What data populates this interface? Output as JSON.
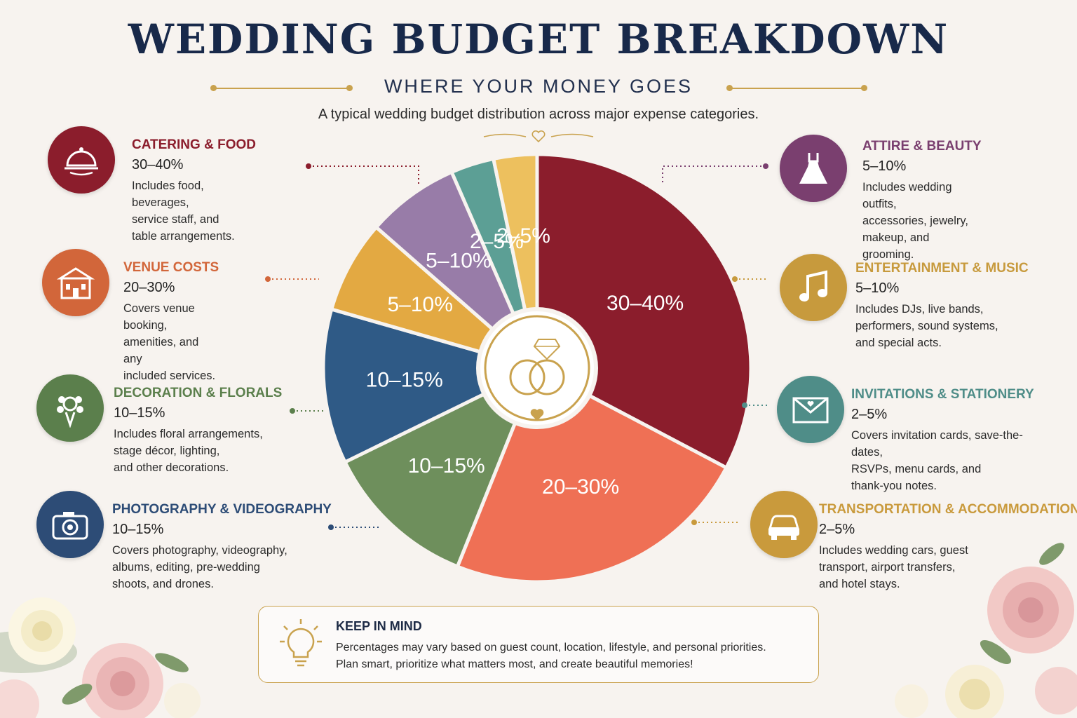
{
  "header": {
    "title": "WEDDING BUDGET BREAKDOWN",
    "subtitle": "WHERE YOUR MONEY GOES",
    "description": "A typical wedding budget distribution across major expense categories."
  },
  "colors": {
    "accent_gold": "#c9a24e",
    "title_navy": "#18294a",
    "catering": "#8b1d2c",
    "venue": "#d2663a",
    "decoration": "#5b7f4c",
    "photography": "#2d4c76",
    "attire": "#7a3f6f",
    "entertainment": "#c79a3d",
    "invitations": "#4f8d88",
    "transportation": "#c99a3c"
  },
  "categories": [
    {
      "key": "catering",
      "name": "CATERING & FOOD",
      "range": "30–40%",
      "icon": "cloche-icon",
      "desc": "Includes food, beverages,\nservice staff, and\ntable arrangements."
    },
    {
      "key": "venue",
      "name": "VENUE COSTS",
      "range": "20–30%",
      "icon": "building-icon",
      "desc": "Covers venue booking,\namenities, and any\nincluded services."
    },
    {
      "key": "decoration",
      "name": "DECORATION & FLORALS",
      "range": "10–15%",
      "icon": "bouquet-icon",
      "desc": "Includes floral arrangements,\nstage décor, lighting,\nand other decorations."
    },
    {
      "key": "photography",
      "name": "PHOTOGRAPHY & VIDEOGRAPHY",
      "range": "10–15%",
      "icon": "camera-icon",
      "desc": "Covers photography, videography,\nalbums, editing, pre-wedding\nshoots, and drones."
    },
    {
      "key": "attire",
      "name": "ATTIRE & BEAUTY",
      "range": "5–10%",
      "icon": "dress-icon",
      "desc": "Includes wedding outfits,\naccessories, jewelry,\nmakeup, and grooming."
    },
    {
      "key": "entertainment",
      "name": "ENTERTAINMENT & MUSIC",
      "range": "5–10%",
      "icon": "music-note-icon",
      "desc": "Includes DJs, live bands,\nperformers, sound systems,\nand special acts."
    },
    {
      "key": "invitations",
      "name": "INVITATIONS & STATIONERY",
      "range": "2–5%",
      "icon": "envelope-icon",
      "desc": "Covers invitation cards, save-the-dates,\nRSVPs, menu cards, and\nthank-you notes."
    },
    {
      "key": "transportation",
      "name": "TRANSPORTATION & ACCOMMODATION",
      "range": "2–5%",
      "icon": "car-icon",
      "desc": "Includes wedding cars, guest\ntransport, airport transfers,\nand hotel stays."
    }
  ],
  "chart_data": {
    "type": "pie",
    "title": "WEDDING BUDGET BREAKDOWN",
    "slices": [
      {
        "name": "CATERING & FOOD",
        "label": "30–40%",
        "value": 35,
        "color": "#8b1d2c"
      },
      {
        "name": "VENUE COSTS",
        "label": "20–30%",
        "value": 25,
        "color": "#ef7055"
      },
      {
        "name": "DECORATION & FLORALS",
        "label": "10–15%",
        "value": 12.5,
        "color": "#6e8f5c"
      },
      {
        "name": "PHOTOGRAPHY & VIDEOGRAPHY",
        "label": "10–15%",
        "value": 12.5,
        "color": "#2f5a86"
      },
      {
        "name": "ENTERTAINMENT & MUSIC",
        "label": "5–10%",
        "value": 7.5,
        "color": "#e3a942"
      },
      {
        "name": "ATTIRE & BEAUTY",
        "label": "5–10%",
        "value": 7.5,
        "color": "#987ca8"
      },
      {
        "name": "INVITATIONS & STATIONERY",
        "label": "2–5%",
        "value": 3.5,
        "color": "#5c9f95"
      },
      {
        "name": "TRANSPORTATION & ACCOMMODATION",
        "label": "2–5%",
        "value": 3.5,
        "color": "#edc05e"
      }
    ],
    "legend": "none"
  },
  "tip": {
    "title": "KEEP IN MIND",
    "line1": "Percentages may vary based on guest count, location, lifestyle, and personal priorities.",
    "line2": "Plan smart, prioritize what matters most, and create beautiful memories!",
    "icon": "lightbulb-icon"
  }
}
